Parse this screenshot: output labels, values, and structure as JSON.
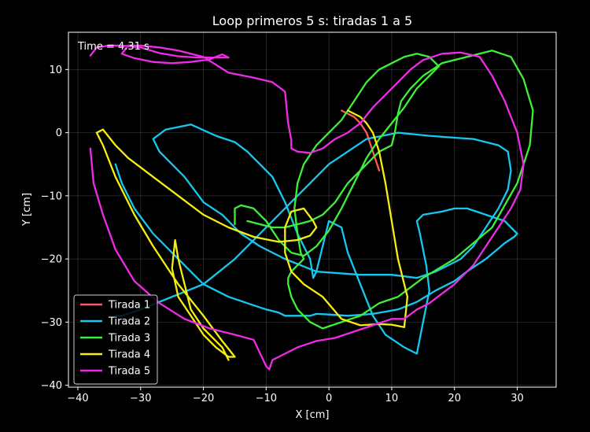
{
  "chart_data": {
    "type": "line",
    "title": "Loop primeros 5 s: tiradas 1 a 5",
    "xlabel": "X [cm]",
    "ylabel": "Y [cm]",
    "xlim": [
      -41.5,
      36.2
    ],
    "ylim": [
      -40.3,
      15.9
    ],
    "xticks": [
      -40,
      -30,
      -20,
      -10,
      0,
      10,
      20,
      30
    ],
    "yticks": [
      -40,
      -30,
      -20,
      -10,
      0,
      10
    ],
    "xtick_labels": [
      "−40",
      "−30",
      "−20",
      "−10",
      "0",
      "10",
      "20",
      "30"
    ],
    "ytick_labels": [
      "−40",
      "−30",
      "−20",
      "−10",
      "0",
      "10"
    ],
    "grid": true,
    "legend_position": "lower-left",
    "annotation": "Time = 4.31 s",
    "background": "#000000",
    "foreground": "#ffffff",
    "series": [
      {
        "name": "Tirada 1",
        "color": "#ff5a5a",
        "x": [
          2,
          4,
          5,
          6,
          7,
          8
        ],
        "y": [
          3.5,
          2.5,
          1.5,
          0,
          -3,
          -6
        ]
      },
      {
        "name": "Tirada 2",
        "color": "#16c8f0",
        "x": [
          -34,
          -33,
          -31,
          -28,
          -24,
          -20,
          -16,
          -13,
          -10,
          -8,
          -7,
          -5,
          -4,
          -3,
          -2,
          0,
          3,
          7,
          11,
          14,
          17,
          20,
          22,
          25,
          28,
          29.5,
          30,
          29,
          28,
          25,
          22,
          20,
          18,
          15,
          14,
          14.5,
          15.5,
          16,
          15,
          14,
          12,
          9,
          7,
          5,
          3,
          2,
          0,
          -2,
          -2.5,
          -3,
          -5,
          -7,
          -9,
          -11,
          -13,
          -15,
          -18,
          -22,
          -26,
          -28,
          -27,
          -23,
          -20,
          -17,
          -14,
          -11,
          -7,
          -2,
          5,
          10,
          14,
          17,
          19,
          21,
          23,
          25,
          27,
          28.5,
          29,
          28.5,
          27,
          25,
          23,
          20,
          16,
          11,
          6,
          0,
          -5,
          -10,
          -15,
          -20,
          -25,
          -30,
          -33,
          -34
        ],
        "y": [
          -5,
          -8,
          -12,
          -16,
          -20,
          -24,
          -26,
          -27,
          -28,
          -28.5,
          -29,
          -29,
          -29,
          -29,
          -28.7,
          -28.8,
          -29,
          -28.7,
          -28,
          -26.8,
          -25,
          -23.5,
          -22,
          -20,
          -17.5,
          -16.5,
          -16,
          -15,
          -14,
          -13,
          -12,
          -12,
          -12.5,
          -13,
          -14,
          -16,
          -21,
          -25,
          -30,
          -35,
          -34,
          -32,
          -29,
          -24,
          -19,
          -15,
          -14,
          -22,
          -23,
          -20,
          -16,
          -11,
          -7,
          -5,
          -3,
          -1.5,
          -0.5,
          1.3,
          0.5,
          -1,
          -3,
          -7,
          -11,
          -13,
          -16,
          -18,
          -20,
          -22,
          -22.5,
          -22.5,
          -23,
          -22,
          -21,
          -20,
          -18,
          -15,
          -12,
          -9,
          -6,
          -3,
          -2,
          -1.5,
          -1,
          -0.8,
          -0.5,
          0,
          -1,
          -5,
          -10,
          -15,
          -20,
          -24,
          -26,
          -28,
          -29,
          -29
        ]
      },
      {
        "name": "Tirada 3",
        "color": "#3ef03a",
        "x": [
          -15,
          -15,
          -14,
          -12,
          -10,
          -8,
          -6,
          -4,
          -2,
          0,
          2,
          4,
          6,
          8,
          10,
          12,
          14,
          16,
          17,
          17.5,
          16,
          14,
          12,
          10,
          8,
          6,
          4,
          2,
          0,
          -2,
          -4,
          -5,
          -5.5,
          -5,
          -4.5,
          -4,
          -5,
          -5.5,
          -6,
          -6.5,
          -6.5,
          -6,
          -5,
          -3,
          -1,
          2,
          5,
          8,
          11,
          15,
          20,
          26,
          30,
          32,
          32.5,
          31,
          29,
          26,
          22,
          18,
          15,
          13,
          11.5,
          11,
          10.5,
          10,
          8,
          6,
          3,
          1,
          -1,
          -3,
          -5,
          -7,
          -9,
          -11,
          -13
        ],
        "y": [
          -14.5,
          -12,
          -11.5,
          -12,
          -14,
          -17,
          -19,
          -19.5,
          -18,
          -15.5,
          -12,
          -8,
          -4,
          -1,
          1.5,
          4,
          7,
          9,
          10,
          10.5,
          12,
          12.5,
          12,
          11,
          10,
          8,
          5,
          2,
          0,
          -2,
          -5,
          -8,
          -12,
          -16,
          -19,
          -20,
          -21,
          -21.5,
          -22,
          -23,
          -24,
          -26,
          -28,
          -30,
          -31,
          -30,
          -29,
          -27,
          -26,
          -23,
          -20,
          -15,
          -8,
          -2,
          3.5,
          8.5,
          12,
          13,
          12,
          11,
          9,
          7,
          5,
          3,
          0,
          -2,
          -3,
          -5,
          -8,
          -11,
          -13,
          -14,
          -14.5,
          -15,
          -15,
          -14.5,
          -14
        ]
      },
      {
        "name": "Tirada 4",
        "color": "#f5ee12",
        "x": [
          -16,
          -17,
          -18,
          -20,
          -22,
          -23,
          -24,
          -24.5,
          -25,
          -24,
          -22,
          -20,
          -18,
          -16,
          -15,
          -17,
          -20,
          -24,
          -28,
          -31,
          -34,
          -36,
          -37,
          -36,
          -34,
          -32,
          -28,
          -24,
          -20,
          -16,
          -12,
          -8,
          -5,
          -3,
          -2,
          -2.5,
          -4,
          -6,
          -7,
          -7,
          -6,
          -4,
          -1,
          2,
          5,
          8,
          10,
          12,
          12.5,
          11,
          10,
          9,
          8,
          7,
          6,
          5,
          4,
          3
        ],
        "y": [
          -36,
          -34,
          -33,
          -31,
          -28,
          -24,
          -20,
          -17,
          -21.5,
          -26,
          -29,
          -32,
          -34,
          -35.5,
          -35.5,
          -33,
          -29,
          -24,
          -18,
          -13,
          -7,
          -2,
          0,
          0.5,
          -2,
          -4,
          -7,
          -10,
          -13,
          -15,
          -16.5,
          -17.3,
          -17,
          -16.3,
          -15,
          -14,
          -12,
          -12.5,
          -15,
          -19,
          -22,
          -24,
          -26,
          -29.5,
          -30.5,
          -30.3,
          -30.4,
          -30.8,
          -26,
          -20,
          -14,
          -8,
          -3,
          0,
          1.5,
          2.5,
          3,
          3.5
        ]
      },
      {
        "name": "Tirada 5",
        "color": "#ee2ce6",
        "x": [
          -38,
          -37.5,
          -36,
          -34,
          -31,
          -27,
          -23,
          -19,
          -15,
          -12,
          -10,
          -9.5,
          -9,
          -7,
          -5,
          -2,
          1,
          4,
          7,
          10,
          12,
          14,
          16,
          18,
          20,
          23,
          25,
          27,
          29,
          30.5,
          31,
          30,
          28,
          26,
          24,
          21,
          18,
          15,
          13,
          11,
          9,
          7,
          5,
          3,
          1,
          -1,
          -3,
          -5,
          -6,
          -6,
          -6.5,
          -7,
          -9,
          -12,
          -16,
          -20,
          -24,
          -27,
          -30,
          -32,
          -33,
          -31,
          -28,
          -25,
          -22,
          -19,
          -17,
          -16,
          -18,
          -21,
          -24,
          -27,
          -30,
          -33,
          -35,
          -37,
          -38
        ],
        "y": [
          -2.5,
          -8,
          -13,
          -18.5,
          -23.5,
          -27,
          -29.5,
          -31,
          -32,
          -32.8,
          -37,
          -37.5,
          -36,
          -35,
          -34,
          -33,
          -32.5,
          -31.5,
          -30.5,
          -29.5,
          -29.5,
          -28,
          -27,
          -25.5,
          -24,
          -21,
          -18,
          -15,
          -12,
          -9,
          -5,
          0,
          5,
          9,
          12,
          12.7,
          12.5,
          11.5,
          10,
          8,
          6,
          4,
          1.5,
          0,
          -1,
          -2.5,
          -3.2,
          -3,
          -2.5,
          -1.2,
          1.5,
          6.5,
          8,
          8.7,
          9.5,
          12,
          13,
          13.5,
          13.8,
          13.8,
          12.5,
          11.8,
          11.2,
          11,
          11.2,
          11.6,
          12.4,
          11.9,
          11.9,
          11.9,
          12.1,
          12.6,
          13.5,
          13.8,
          13.8,
          13.5,
          12.2
        ]
      }
    ]
  }
}
